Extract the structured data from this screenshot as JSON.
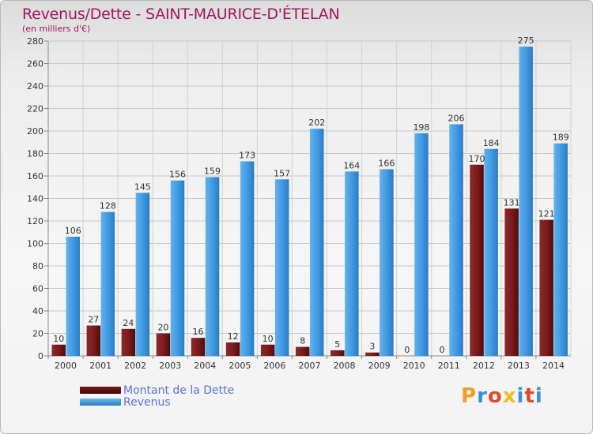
{
  "title": "Revenus/Dette - SAINT-MAURICE-D'ÉTELAN",
  "subtitle": "(en milliers d'€)",
  "brand": {
    "letters": [
      "P",
      "r",
      "o",
      "x",
      "i",
      "t",
      "i"
    ],
    "colors": [
      "#f0a020",
      "#3a8fd8",
      "#e04a2a",
      "#e8c020",
      "#3a8fd8",
      "#e04a2a",
      "#3a8fd8"
    ]
  },
  "chart_data": {
    "type": "bar",
    "categories": [
      "2000",
      "2001",
      "2002",
      "2003",
      "2004",
      "2005",
      "2006",
      "2007",
      "2008",
      "2009",
      "2010",
      "2011",
      "2012",
      "2013",
      "2014"
    ],
    "series": [
      {
        "name": "Montant de la Dette",
        "values": [
          10,
          27,
          24,
          20,
          16,
          12,
          10,
          8,
          5,
          3,
          0,
          0,
          170,
          131,
          121
        ],
        "color": "#7a1a1a",
        "labels": [
          "10",
          "27",
          "24",
          "20",
          "16",
          "12",
          "10",
          "8",
          "5",
          "3",
          "0",
          "0",
          "170",
          "131",
          "121"
        ]
      },
      {
        "name": "Revenus",
        "values": [
          106,
          128,
          145,
          156,
          159,
          173,
          157,
          202,
          164,
          166,
          198,
          206,
          184,
          275,
          189
        ],
        "color": "#3f98e0",
        "labels": [
          "106",
          "128",
          "145",
          "156",
          "159",
          "173",
          "157",
          "202",
          "164",
          "166",
          "198",
          "206",
          "184",
          "275",
          "189"
        ]
      }
    ],
    "yticks": [
      "0",
      "20",
      "40",
      "60",
      "80",
      "100",
      "120",
      "140",
      "160",
      "180",
      "200",
      "220",
      "240",
      "260",
      "280"
    ],
    "ylim": [
      0,
      280
    ],
    "grid": true,
    "legend": "bottom-left"
  }
}
